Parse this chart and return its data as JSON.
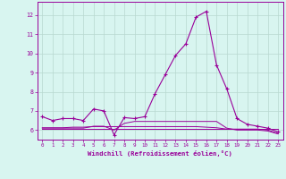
{
  "xlabel": "Windchill (Refroidissement éolien,°C)",
  "background_color": "#d8f5f0",
  "grid_color": "#b8d8d0",
  "line_color": "#990099",
  "xlim": [
    -0.5,
    23.5
  ],
  "ylim": [
    5.5,
    12.7
  ],
  "yticks": [
    6,
    7,
    8,
    9,
    10,
    11,
    12
  ],
  "xticks": [
    0,
    1,
    2,
    3,
    4,
    5,
    6,
    7,
    8,
    9,
    10,
    11,
    12,
    13,
    14,
    15,
    16,
    17,
    18,
    19,
    20,
    21,
    22,
    23
  ],
  "series": [
    [
      6.7,
      6.5,
      6.6,
      6.6,
      6.5,
      7.1,
      7.0,
      5.75,
      6.65,
      6.6,
      6.7,
      7.9,
      8.9,
      9.9,
      10.5,
      11.9,
      12.2,
      9.4,
      8.15,
      6.6,
      6.3,
      6.2,
      6.1,
      5.9
    ],
    [
      6.1,
      6.1,
      6.1,
      6.1,
      6.1,
      6.2,
      6.2,
      6.0,
      6.35,
      6.45,
      6.45,
      6.45,
      6.45,
      6.45,
      6.45,
      6.45,
      6.45,
      6.45,
      6.1,
      6.0,
      6.0,
      6.0,
      5.95,
      5.8
    ],
    [
      6.05,
      6.05,
      6.05,
      6.05,
      6.05,
      6.05,
      6.05,
      6.05,
      6.05,
      6.05,
      6.05,
      6.05,
      6.05,
      6.05,
      6.05,
      6.05,
      6.05,
      6.05,
      6.05,
      6.05,
      6.05,
      6.05,
      6.05,
      6.05
    ],
    [
      6.12,
      6.12,
      6.12,
      6.15,
      6.15,
      6.18,
      6.18,
      6.18,
      6.18,
      6.18,
      6.18,
      6.18,
      6.18,
      6.18,
      6.18,
      6.18,
      6.15,
      6.12,
      6.05,
      6.05,
      6.05,
      6.05,
      6.0,
      5.82
    ]
  ]
}
